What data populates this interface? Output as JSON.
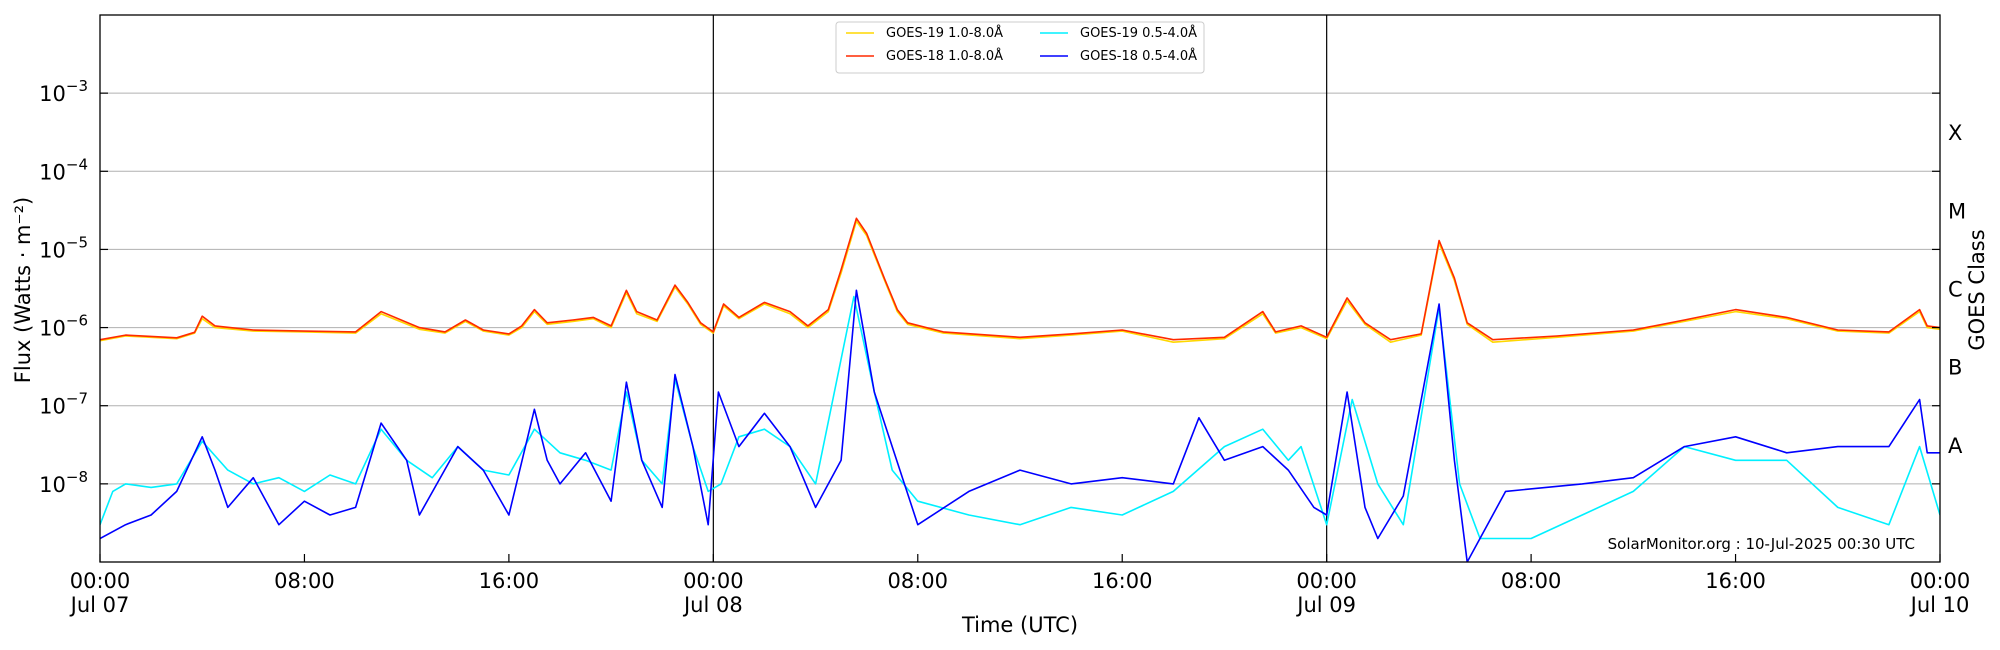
{
  "chart_data": {
    "type": "line",
    "xlabel": "Time (UTC)",
    "ylabel": "Flux (Watts · m⁻²)",
    "ylabel_right": "GOES Class",
    "y_scale": "log",
    "ylim": [
      1e-09,
      0.01
    ],
    "xlim_hours": [
      0,
      72
    ],
    "x_ticks": [
      {
        "hour": 0,
        "line1": "00:00",
        "line2": "Jul 07"
      },
      {
        "hour": 8,
        "line1": "08:00",
        "line2": ""
      },
      {
        "hour": 16,
        "line1": "16:00",
        "line2": ""
      },
      {
        "hour": 24,
        "line1": "00:00",
        "line2": "Jul 08"
      },
      {
        "hour": 32,
        "line1": "08:00",
        "line2": ""
      },
      {
        "hour": 40,
        "line1": "16:00",
        "line2": ""
      },
      {
        "hour": 48,
        "line1": "00:00",
        "line2": "Jul 09"
      },
      {
        "hour": 56,
        "line1": "08:00",
        "line2": ""
      },
      {
        "hour": 64,
        "line1": "16:00",
        "line2": ""
      },
      {
        "hour": 72,
        "line1": "00:00",
        "line2": "Jul 10"
      }
    ],
    "y_ticks": [
      {
        "exp": -8,
        "label": "10",
        "sup": "−8"
      },
      {
        "exp": -7,
        "label": "10",
        "sup": "−7"
      },
      {
        "exp": -6,
        "label": "10",
        "sup": "−6"
      },
      {
        "exp": -5,
        "label": "10",
        "sup": "−5"
      },
      {
        "exp": -4,
        "label": "10",
        "sup": "−4"
      },
      {
        "exp": -3,
        "label": "10",
        "sup": "−3"
      }
    ],
    "goes_classes": [
      {
        "label": "A",
        "exp": -7.5
      },
      {
        "label": "B",
        "exp": -6.5
      },
      {
        "label": "C",
        "exp": -5.5
      },
      {
        "label": "M",
        "exp": -4.5
      },
      {
        "label": "X",
        "exp": -3.5
      }
    ],
    "day_boundaries_hours": [
      24,
      48
    ],
    "grid": true,
    "legend_position": "top-center",
    "credit": "SolarMonitor.org : 10-Jul-2025 00:30 UTC",
    "series": [
      {
        "name": "GOES-19 1.0-8.0Å",
        "color": "#ffd700",
        "points": [
          [
            0,
            6.8e-07
          ],
          [
            1,
            7.8e-07
          ],
          [
            2,
            7.5e-07
          ],
          [
            3,
            7.2e-07
          ],
          [
            3.7,
            8.5e-07
          ],
          [
            4,
            1.3e-06
          ],
          [
            4.5,
            1e-06
          ],
          [
            6,
            9e-07
          ],
          [
            8,
            8.8e-07
          ],
          [
            10,
            8.5e-07
          ],
          [
            11,
            1.5e-06
          ],
          [
            12.5,
            9.5e-07
          ],
          [
            13.5,
            8.5e-07
          ],
          [
            14.3,
            1.2e-06
          ],
          [
            15,
            9e-07
          ],
          [
            16,
            8e-07
          ],
          [
            16.5,
            1e-06
          ],
          [
            17,
            1.6e-06
          ],
          [
            17.5,
            1.1e-06
          ],
          [
            18.5,
            1.2e-06
          ],
          [
            19.3,
            1.3e-06
          ],
          [
            20,
            1e-06
          ],
          [
            20.6,
            2.8e-06
          ],
          [
            21,
            1.5e-06
          ],
          [
            21.8,
            1.2e-06
          ],
          [
            22.5,
            3.3e-06
          ],
          [
            23,
            2e-06
          ],
          [
            23.5,
            1.1e-06
          ],
          [
            24,
            8.5e-07
          ],
          [
            24.4,
            1.9e-06
          ],
          [
            25,
            1.3e-06
          ],
          [
            26,
            2e-06
          ],
          [
            27,
            1.5e-06
          ],
          [
            27.7,
            1e-06
          ],
          [
            28.5,
            1.6e-06
          ],
          [
            29,
            5e-06
          ],
          [
            29.6,
            2.3e-05
          ],
          [
            30,
            1.5e-05
          ],
          [
            30.7,
            4e-06
          ],
          [
            31.2,
            1.6e-06
          ],
          [
            31.6,
            1.1e-06
          ],
          [
            33,
            8.5e-07
          ],
          [
            36,
            7.2e-07
          ],
          [
            38,
            8e-07
          ],
          [
            40,
            9e-07
          ],
          [
            42,
            6.5e-07
          ],
          [
            44,
            7.2e-07
          ],
          [
            45.5,
            1.5e-06
          ],
          [
            46,
            8.5e-07
          ],
          [
            47,
            1e-06
          ],
          [
            48,
            7.2e-07
          ],
          [
            48.8,
            2.2e-06
          ],
          [
            49.5,
            1.1e-06
          ],
          [
            50.5,
            6.5e-07
          ],
          [
            51.7,
            8e-07
          ],
          [
            52.4,
            1.2e-05
          ],
          [
            53,
            4e-06
          ],
          [
            53.5,
            1.1e-06
          ],
          [
            54.5,
            6.5e-07
          ],
          [
            57,
            7.5e-07
          ],
          [
            60,
            9e-07
          ],
          [
            62,
            1.2e-06
          ],
          [
            64,
            1.6e-06
          ],
          [
            66,
            1.3e-06
          ],
          [
            68,
            9e-07
          ],
          [
            70,
            8.5e-07
          ],
          [
            71.2,
            1.6e-06
          ],
          [
            71.5,
            1e-06
          ],
          [
            72,
            9.5e-07
          ]
        ]
      },
      {
        "name": "GOES-18 1.0-8.0Å",
        "color": "#ff2a00",
        "points": [
          [
            0,
            7e-07
          ],
          [
            1,
            8e-07
          ],
          [
            2,
            7.7e-07
          ],
          [
            3,
            7.4e-07
          ],
          [
            3.7,
            8.7e-07
          ],
          [
            4,
            1.4e-06
          ],
          [
            4.5,
            1.05e-06
          ],
          [
            6,
            9.3e-07
          ],
          [
            8,
            9e-07
          ],
          [
            10,
            8.8e-07
          ],
          [
            11,
            1.6e-06
          ],
          [
            12.5,
            1e-06
          ],
          [
            13.5,
            8.8e-07
          ],
          [
            14.3,
            1.25e-06
          ],
          [
            15,
            9.3e-07
          ],
          [
            16,
            8.3e-07
          ],
          [
            16.5,
            1.05e-06
          ],
          [
            17,
            1.7e-06
          ],
          [
            17.5,
            1.15e-06
          ],
          [
            18.5,
            1.25e-06
          ],
          [
            19.3,
            1.35e-06
          ],
          [
            20,
            1.05e-06
          ],
          [
            20.6,
            3e-06
          ],
          [
            21,
            1.6e-06
          ],
          [
            21.8,
            1.25e-06
          ],
          [
            22.5,
            3.5e-06
          ],
          [
            23,
            2.1e-06
          ],
          [
            23.5,
            1.15e-06
          ],
          [
            24,
            8.8e-07
          ],
          [
            24.4,
            2e-06
          ],
          [
            25,
            1.35e-06
          ],
          [
            26,
            2.1e-06
          ],
          [
            27,
            1.6e-06
          ],
          [
            27.7,
            1.05e-06
          ],
          [
            28.5,
            1.7e-06
          ],
          [
            29,
            5.5e-06
          ],
          [
            29.6,
            2.5e-05
          ],
          [
            30,
            1.6e-05
          ],
          [
            30.7,
            4.2e-06
          ],
          [
            31.2,
            1.7e-06
          ],
          [
            31.6,
            1.15e-06
          ],
          [
            33,
            8.8e-07
          ],
          [
            36,
            7.5e-07
          ],
          [
            38,
            8.3e-07
          ],
          [
            40,
            9.3e-07
          ],
          [
            42,
            7e-07
          ],
          [
            44,
            7.5e-07
          ],
          [
            45.5,
            1.6e-06
          ],
          [
            46,
            8.8e-07
          ],
          [
            47,
            1.05e-06
          ],
          [
            48,
            7.5e-07
          ],
          [
            48.8,
            2.4e-06
          ],
          [
            49.5,
            1.15e-06
          ],
          [
            50.5,
            7e-07
          ],
          [
            51.7,
            8.3e-07
          ],
          [
            52.4,
            1.3e-05
          ],
          [
            53,
            4.3e-06
          ],
          [
            53.5,
            1.15e-06
          ],
          [
            54.5,
            7e-07
          ],
          [
            57,
            7.8e-07
          ],
          [
            60,
            9.3e-07
          ],
          [
            62,
            1.25e-06
          ],
          [
            64,
            1.7e-06
          ],
          [
            66,
            1.35e-06
          ],
          [
            68,
            9.3e-07
          ],
          [
            70,
            8.8e-07
          ],
          [
            71.2,
            1.7e-06
          ],
          [
            71.5,
            1.05e-06
          ],
          [
            72,
            1e-06
          ]
        ]
      },
      {
        "name": "GOES-19 0.5-4.0Å",
        "color": "#00f0ff",
        "points": [
          [
            0,
            3e-09
          ],
          [
            0.5,
            8e-09
          ],
          [
            1,
            1e-08
          ],
          [
            2,
            9e-09
          ],
          [
            3,
            1e-08
          ],
          [
            4,
            3.5e-08
          ],
          [
            5,
            1.5e-08
          ],
          [
            6,
            1e-08
          ],
          [
            7,
            1.2e-08
          ],
          [
            8,
            8e-09
          ],
          [
            9,
            1.3e-08
          ],
          [
            10,
            1e-08
          ],
          [
            11,
            5e-08
          ],
          [
            12,
            2e-08
          ],
          [
            13,
            1.2e-08
          ],
          [
            14,
            3e-08
          ],
          [
            15,
            1.5e-08
          ],
          [
            16,
            1.3e-08
          ],
          [
            17,
            5e-08
          ],
          [
            18,
            2.5e-08
          ],
          [
            19,
            2e-08
          ],
          [
            20,
            1.5e-08
          ],
          [
            20.6,
            1.5e-07
          ],
          [
            21.2,
            2e-08
          ],
          [
            22,
            1e-08
          ],
          [
            22.5,
            2.2e-07
          ],
          [
            23.2,
            3e-08
          ],
          [
            23.8,
            8e-09
          ],
          [
            24.3,
            1e-08
          ],
          [
            25,
            4e-08
          ],
          [
            26,
            5e-08
          ],
          [
            27,
            3e-08
          ],
          [
            28,
            1e-08
          ],
          [
            29.5,
            2.5e-06
          ],
          [
            30.3,
            1.5e-07
          ],
          [
            31,
            1.5e-08
          ],
          [
            32,
            6e-09
          ],
          [
            34,
            4e-09
          ],
          [
            36,
            3e-09
          ],
          [
            38,
            5e-09
          ],
          [
            40,
            4e-09
          ],
          [
            42,
            8e-09
          ],
          [
            44,
            3e-08
          ],
          [
            45.5,
            5e-08
          ],
          [
            46.5,
            2e-08
          ],
          [
            47,
            3e-08
          ],
          [
            48,
            3e-09
          ],
          [
            49,
            1.2e-07
          ],
          [
            50,
            1e-08
          ],
          [
            51,
            3e-09
          ],
          [
            52.4,
            1.8e-06
          ],
          [
            53.2,
            1e-08
          ],
          [
            54,
            2e-09
          ],
          [
            56,
            2e-09
          ],
          [
            58,
            4e-09
          ],
          [
            60,
            8e-09
          ],
          [
            62,
            3e-08
          ],
          [
            64,
            2e-08
          ],
          [
            66,
            2e-08
          ],
          [
            68,
            5e-09
          ],
          [
            70,
            3e-09
          ],
          [
            71.2,
            3e-08
          ],
          [
            72,
            4e-09
          ]
        ]
      },
      {
        "name": "GOES-18 0.5-4.0Å",
        "color": "#0000ff",
        "points": [
          [
            0,
            2e-09
          ],
          [
            1,
            3e-09
          ],
          [
            2,
            4e-09
          ],
          [
            3,
            8e-09
          ],
          [
            4,
            4e-08
          ],
          [
            4.5,
            1.5e-08
          ],
          [
            5,
            5e-09
          ],
          [
            6,
            1.2e-08
          ],
          [
            7,
            3e-09
          ],
          [
            8,
            6e-09
          ],
          [
            9,
            4e-09
          ],
          [
            10,
            5e-09
          ],
          [
            11,
            6e-08
          ],
          [
            12,
            2e-08
          ],
          [
            12.5,
            4e-09
          ],
          [
            14,
            3e-08
          ],
          [
            15,
            1.5e-08
          ],
          [
            16,
            4e-09
          ],
          [
            17,
            9e-08
          ],
          [
            17.5,
            2e-08
          ],
          [
            18,
            1e-08
          ],
          [
            19,
            2.5e-08
          ],
          [
            20,
            6e-09
          ],
          [
            20.6,
            2e-07
          ],
          [
            21.2,
            2e-08
          ],
          [
            22,
            5e-09
          ],
          [
            22.5,
            2.5e-07
          ],
          [
            23.2,
            3e-08
          ],
          [
            23.8,
            3e-09
          ],
          [
            24.2,
            1.5e-07
          ],
          [
            25,
            3e-08
          ],
          [
            26,
            8e-08
          ],
          [
            27,
            3e-08
          ],
          [
            28,
            5e-09
          ],
          [
            29,
            2e-08
          ],
          [
            29.6,
            3e-06
          ],
          [
            30.3,
            1.5e-07
          ],
          [
            31,
            3e-08
          ],
          [
            32,
            3e-09
          ],
          [
            34,
            8e-09
          ],
          [
            36,
            1.5e-08
          ],
          [
            38,
            1e-08
          ],
          [
            40,
            1.2e-08
          ],
          [
            42,
            1e-08
          ],
          [
            43,
            7e-08
          ],
          [
            44,
            2e-08
          ],
          [
            45.5,
            3e-08
          ],
          [
            46.5,
            1.5e-08
          ],
          [
            47.5,
            5e-09
          ],
          [
            48,
            4e-09
          ],
          [
            48.8,
            1.5e-07
          ],
          [
            49.5,
            5e-09
          ],
          [
            50,
            2e-09
          ],
          [
            51,
            7e-09
          ],
          [
            52.4,
            2e-06
          ],
          [
            53,
            2e-08
          ],
          [
            53.5,
            1e-09
          ],
          [
            55,
            8e-09
          ],
          [
            58,
            1e-08
          ],
          [
            60,
            1.2e-08
          ],
          [
            62,
            3e-08
          ],
          [
            64,
            4e-08
          ],
          [
            66,
            2.5e-08
          ],
          [
            68,
            3e-08
          ],
          [
            70,
            3e-08
          ],
          [
            71.2,
            1.2e-07
          ],
          [
            71.5,
            2.5e-08
          ],
          [
            72,
            2.5e-08
          ]
        ]
      }
    ]
  }
}
